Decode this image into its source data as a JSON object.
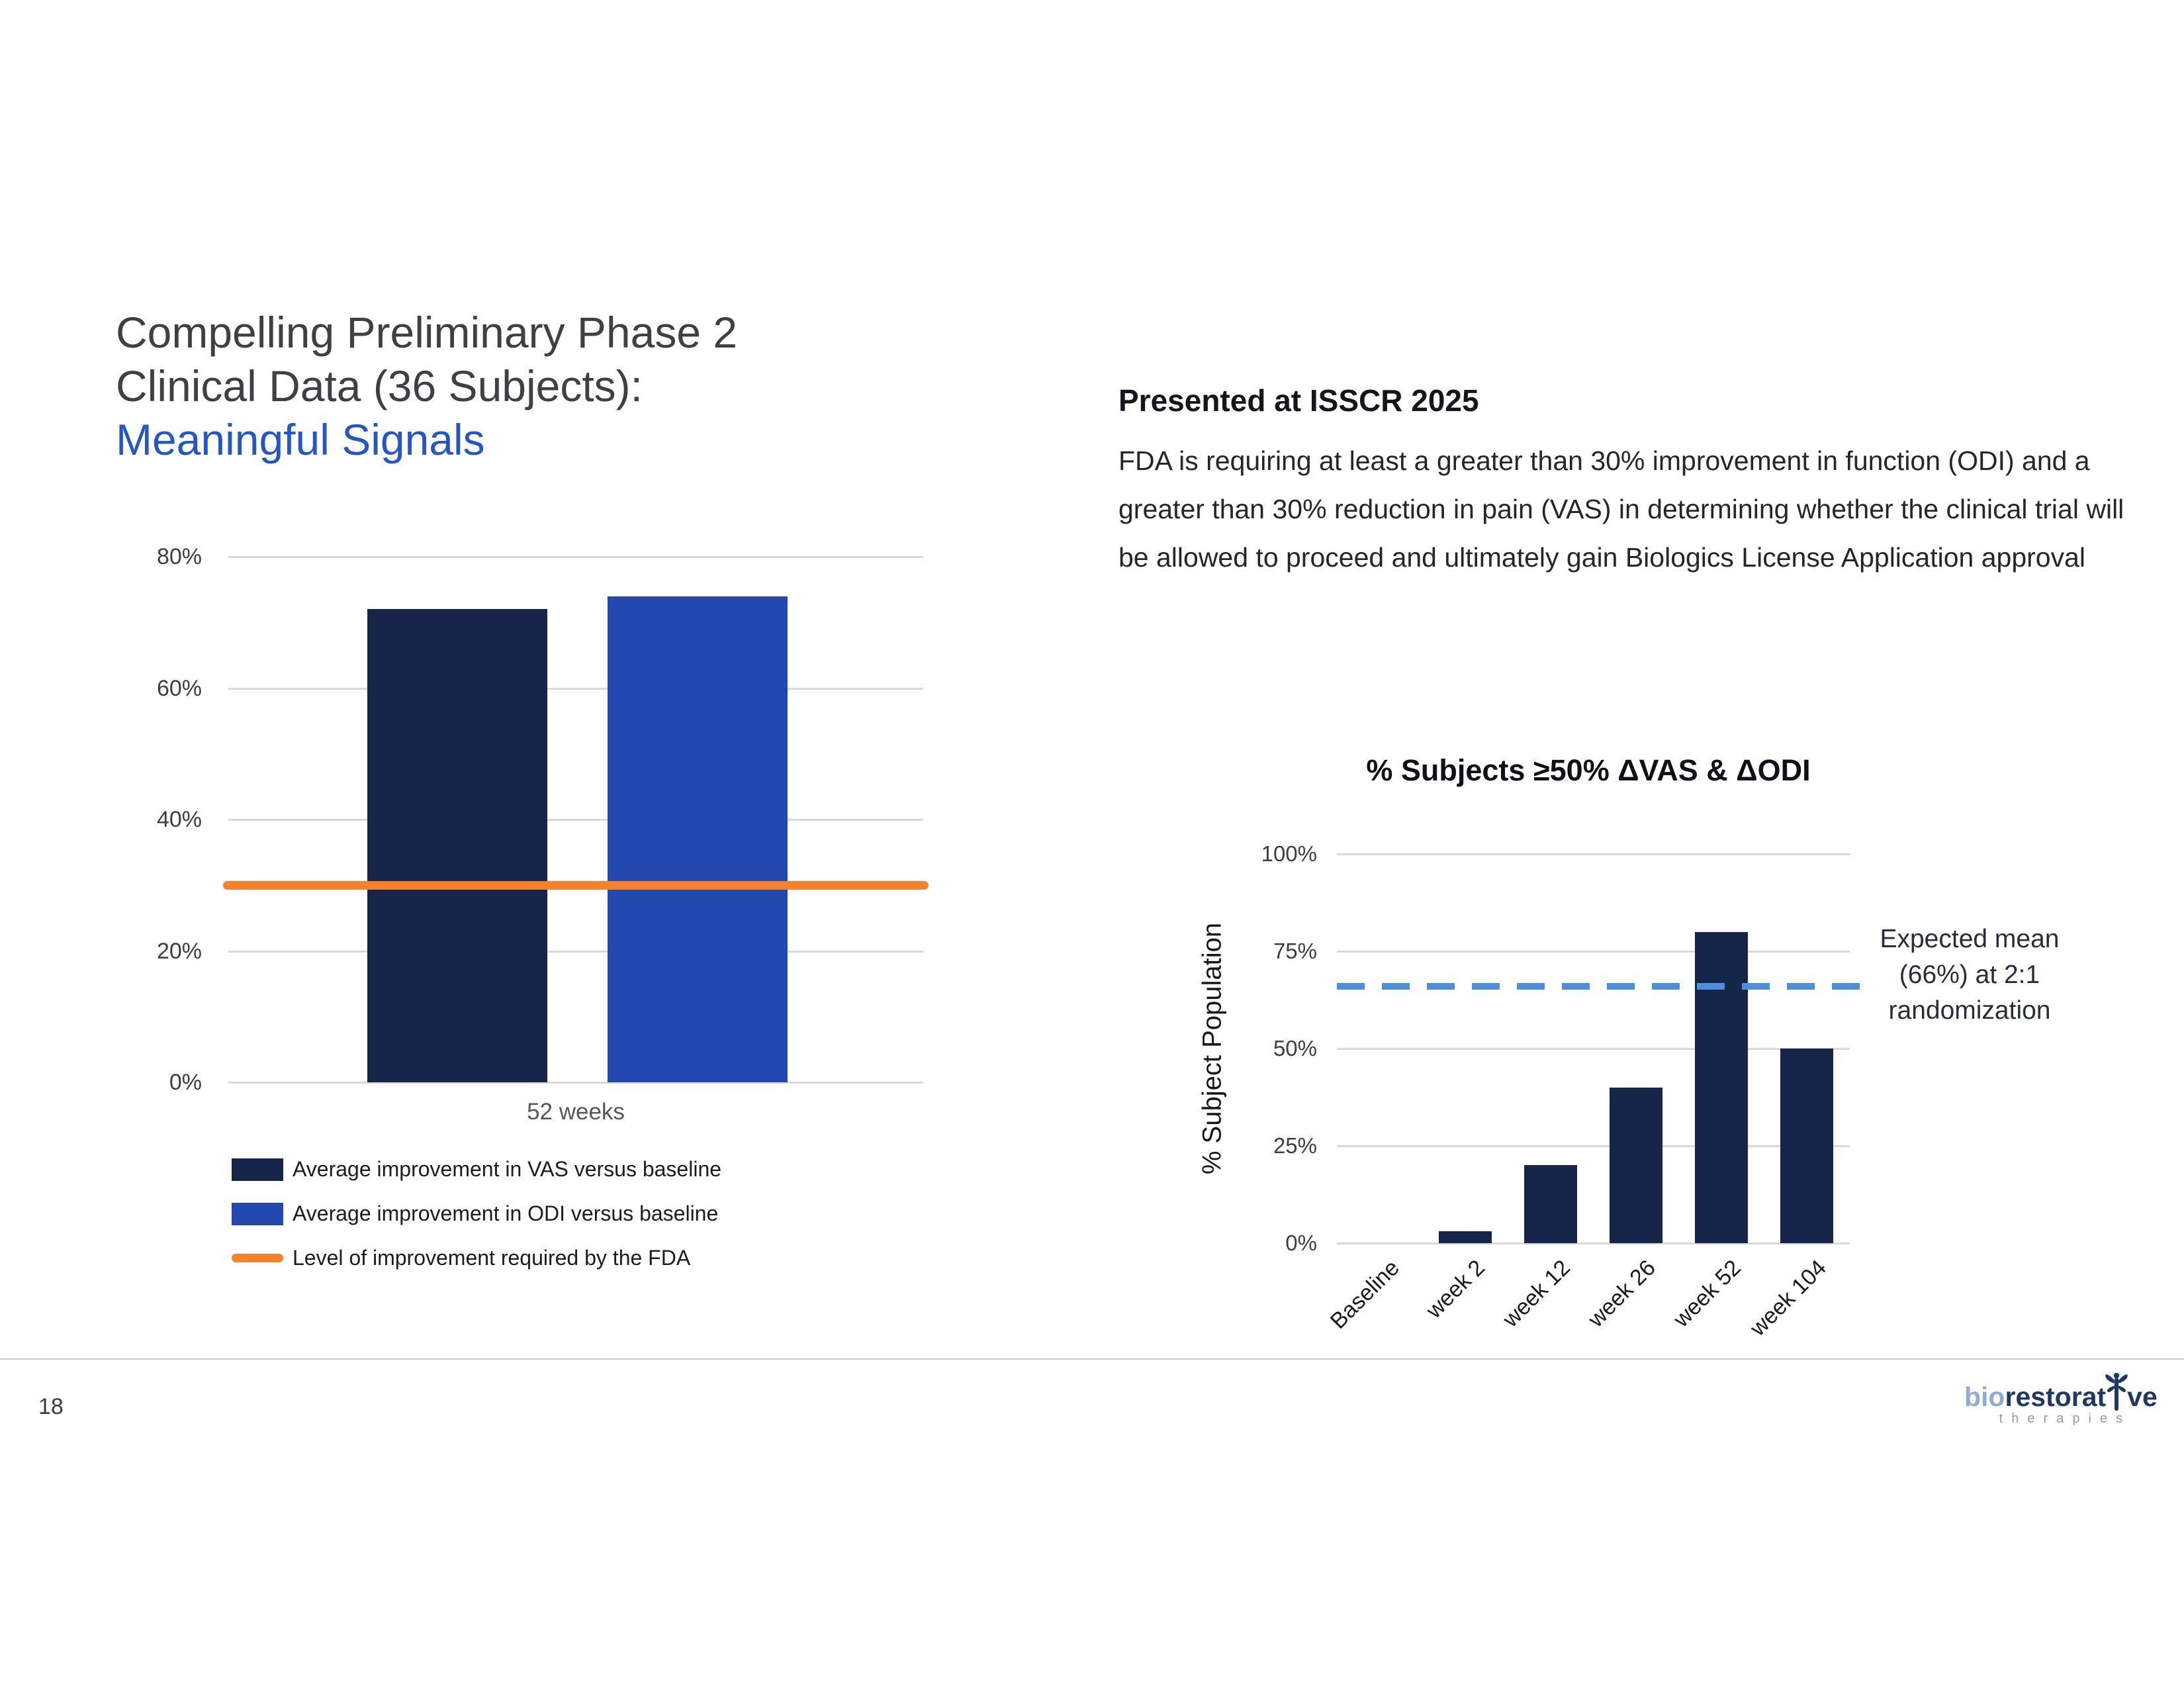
{
  "slide": {
    "title": {
      "line1": "Compelling Preliminary Phase 2",
      "line2": "Clinical Data (36 Subjects):",
      "line3": "Meaningful Signals"
    },
    "page_number": "18"
  },
  "colors": {
    "navy": "#15264A",
    "bar_blue": "#2349B0",
    "orange": "#F5822A",
    "dash_blue": "#4D8FDC",
    "grid": "#D9D9D9",
    "title_gray": "#3E4043",
    "title_blue": "#2456C6",
    "heading_dark": "#13161D",
    "body_text": "#23262E",
    "axis_text": "#3E3E3E",
    "muted_label": "#575757",
    "divider": "#CBCBCB",
    "logo_light_blue": "#8FABD8",
    "logo_navy": "#1F3864",
    "logo_gray": "#9A9A9A"
  },
  "right_panel": {
    "heading": "Presented at ISSCR 2025",
    "body": "FDA is requiring at least a greater than 30% improvement in function (ODI) and a greater than 30% reduction in pain (VAS) in determining whether the clinical trial will be allowed to proceed and ultimately gain Biologics License Application approval"
  },
  "chart_data": [
    {
      "type": "bar",
      "title": "",
      "categories": [
        "52 weeks"
      ],
      "series": [
        {
          "name": "Average improvement in VAS versus baseline",
          "values": [
            72
          ],
          "color_key": "navy"
        },
        {
          "name": "Average improvement in ODI versus baseline",
          "values": [
            74
          ],
          "color_key": "bar_blue"
        }
      ],
      "reference_line": {
        "label": "Level of improvement required by the FDA",
        "value": 30,
        "color_key": "orange"
      },
      "xlabel": "52 weeks",
      "ylabel": "",
      "ylim": [
        0,
        80
      ],
      "yticks": [
        0,
        20,
        40,
        60,
        80
      ],
      "ytick_suffix": "%",
      "grid": true,
      "legend_position": "bottom"
    },
    {
      "type": "bar",
      "title": "% Subjects ≥50% ΔVAS & ΔODI",
      "categories": [
        "Baseline",
        "week 2",
        "week 12",
        "week 26",
        "week 52",
        "week 104"
      ],
      "values": [
        0,
        3,
        20,
        40,
        80,
        50
      ],
      "dashed_reference": {
        "value": 66,
        "annotation_lines": [
          "Expected mean",
          "(66%) at 2:1",
          "randomization"
        ]
      },
      "xlabel": "",
      "ylabel": "% Subject Population",
      "ylim": [
        0,
        100
      ],
      "yticks": [
        0,
        25,
        50,
        75,
        100
      ],
      "ytick_suffix": "%",
      "grid": true,
      "legend_position": "none"
    }
  ],
  "logo": {
    "bio": "bio",
    "word_start": "restorat",
    "word_end": "ve",
    "subtext": "therapies"
  }
}
